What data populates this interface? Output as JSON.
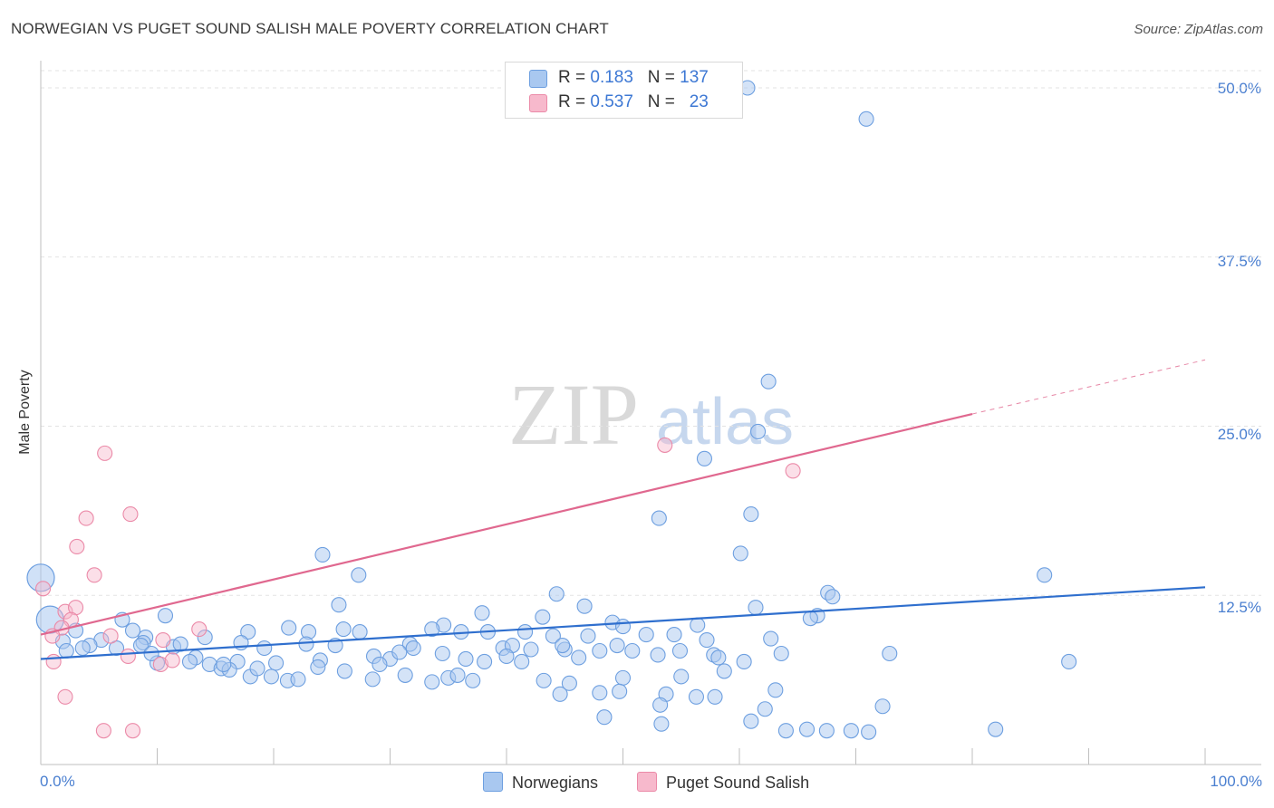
{
  "title": "NORWEGIAN VS PUGET SOUND SALISH MALE POVERTY CORRELATION CHART",
  "source": "Source: ZipAtlas.com",
  "watermark": {
    "zip": "ZIP",
    "atlas": "atlas"
  },
  "legend": {
    "rows": [
      {
        "r_label": "R =",
        "r_value": "0.183",
        "n_label": "N =",
        "n_value": "137"
      },
      {
        "r_label": "R =",
        "r_value": "0.537",
        "n_label": "N =",
        "n_value": "23"
      }
    ]
  },
  "bottom_legend": {
    "series1": "Norwegians",
    "series2": "Puget Sound Salish"
  },
  "colors": {
    "blue_fill": "#a9c8f0",
    "blue_stroke": "#6d9fe0",
    "blue_line": "#2f6fce",
    "pink_fill": "#f7b9cc",
    "pink_stroke": "#eb8aa8",
    "pink_line": "#e0688f",
    "tick_text": "#4a7fd0",
    "grid": "#e3e3e3"
  },
  "chart_data": {
    "type": "scatter",
    "title": "NORWEGIAN VS PUGET SOUND SALISH MALE POVERTY CORRELATION CHART",
    "xlabel": "",
    "ylabel": "Male Poverty",
    "xlim": [
      0,
      100
    ],
    "ylim": [
      0,
      50
    ],
    "x_tick_labels": [
      "0.0%",
      "100.0%"
    ],
    "y_ticks": [
      12.5,
      25.0,
      37.5,
      50.0
    ],
    "y_tick_labels": [
      "12.5%",
      "25.0%",
      "37.5%",
      "50.0%"
    ],
    "grid": true,
    "series": [
      {
        "name": "Norwegians",
        "R": 0.183,
        "N": 137,
        "trend": {
          "x0": 0,
          "y0": 7.8,
          "x1": 100,
          "y1": 13.1
        },
        "points": [
          [
            60.7,
            50.0
          ],
          [
            70.9,
            47.7
          ],
          [
            62.5,
            28.3
          ],
          [
            61.6,
            24.6
          ],
          [
            57.0,
            22.6
          ],
          [
            53.1,
            18.2
          ],
          [
            61.0,
            18.5
          ],
          [
            60.1,
            15.6
          ],
          [
            24.2,
            15.5
          ],
          [
            27.3,
            14.0
          ],
          [
            86.2,
            14.0
          ],
          [
            44.3,
            12.6
          ],
          [
            67.6,
            12.7
          ],
          [
            68.0,
            12.4
          ],
          [
            25.6,
            11.8
          ],
          [
            46.7,
            11.7
          ],
          [
            61.4,
            11.6
          ],
          [
            66.7,
            11.0
          ],
          [
            66.1,
            10.8
          ],
          [
            37.9,
            11.2
          ],
          [
            43.1,
            10.9
          ],
          [
            49.1,
            10.5
          ],
          [
            34.6,
            10.3
          ],
          [
            21.3,
            10.1
          ],
          [
            26.0,
            10.0
          ],
          [
            50.0,
            10.2
          ],
          [
            56.4,
            10.3
          ],
          [
            10.7,
            11.0
          ],
          [
            33.6,
            10.0
          ],
          [
            3.0,
            9.9
          ],
          [
            7.0,
            10.7
          ],
          [
            7.9,
            9.9
          ],
          [
            9.0,
            9.4
          ],
          [
            17.8,
            9.8
          ],
          [
            23.0,
            9.8
          ],
          [
            27.4,
            9.8
          ],
          [
            36.1,
            9.8
          ],
          [
            38.4,
            9.8
          ],
          [
            41.6,
            9.8
          ],
          [
            44.0,
            9.5
          ],
          [
            47.0,
            9.5
          ],
          [
            52.0,
            9.6
          ],
          [
            54.4,
            9.6
          ],
          [
            57.2,
            9.2
          ],
          [
            5.2,
            9.2
          ],
          [
            8.8,
            9.0
          ],
          [
            1.9,
            9.1
          ],
          [
            4.2,
            8.8
          ],
          [
            14.1,
            9.4
          ],
          [
            17.2,
            9.0
          ],
          [
            19.2,
            8.6
          ],
          [
            22.8,
            8.9
          ],
          [
            25.3,
            8.8
          ],
          [
            31.7,
            8.9
          ],
          [
            32.0,
            8.6
          ],
          [
            39.7,
            8.6
          ],
          [
            40.5,
            8.8
          ],
          [
            45.0,
            8.5
          ],
          [
            49.5,
            8.8
          ],
          [
            53.0,
            8.1
          ],
          [
            62.7,
            9.3
          ],
          [
            72.9,
            8.2
          ],
          [
            2.2,
            8.4
          ],
          [
            3.6,
            8.6
          ],
          [
            8.6,
            8.8
          ],
          [
            11.4,
            8.7
          ],
          [
            13.3,
            7.9
          ],
          [
            16.9,
            7.6
          ],
          [
            20.2,
            7.5
          ],
          [
            24.0,
            7.7
          ],
          [
            28.6,
            8.0
          ],
          [
            30.0,
            7.8
          ],
          [
            34.5,
            8.2
          ],
          [
            36.5,
            7.8
          ],
          [
            40.0,
            8.0
          ],
          [
            48.0,
            8.4
          ],
          [
            57.8,
            8.1
          ],
          [
            63.6,
            8.2
          ],
          [
            88.3,
            7.6
          ],
          [
            10.0,
            7.5
          ],
          [
            14.5,
            7.4
          ],
          [
            15.5,
            7.1
          ],
          [
            16.2,
            7.0
          ],
          [
            18.0,
            6.5
          ],
          [
            19.8,
            6.5
          ],
          [
            21.2,
            6.2
          ],
          [
            22.1,
            6.3
          ],
          [
            23.8,
            7.2
          ],
          [
            26.1,
            6.9
          ],
          [
            28.5,
            6.3
          ],
          [
            33.6,
            6.1
          ],
          [
            35.0,
            6.4
          ],
          [
            37.1,
            6.2
          ],
          [
            43.2,
            6.2
          ],
          [
            45.4,
            6.0
          ],
          [
            48.0,
            5.3
          ],
          [
            50.0,
            6.4
          ],
          [
            58.7,
            6.9
          ],
          [
            55.0,
            6.5
          ],
          [
            56.3,
            5.0
          ],
          [
            44.6,
            5.2
          ],
          [
            49.7,
            5.4
          ],
          [
            53.7,
            5.2
          ],
          [
            57.9,
            5.0
          ],
          [
            63.1,
            5.5
          ],
          [
            53.2,
            4.4
          ],
          [
            72.3,
            4.3
          ],
          [
            62.2,
            4.1
          ],
          [
            48.4,
            3.5
          ],
          [
            53.3,
            3.0
          ],
          [
            61.0,
            3.2
          ],
          [
            71.1,
            2.4
          ],
          [
            82.0,
            2.6
          ],
          [
            67.5,
            2.5
          ],
          [
            69.6,
            2.5
          ],
          [
            64.0,
            2.5
          ],
          [
            65.8,
            2.6
          ],
          [
            12.0,
            8.9
          ],
          [
            30.8,
            8.3
          ],
          [
            42.1,
            8.5
          ],
          [
            44.8,
            8.8
          ],
          [
            50.8,
            8.4
          ],
          [
            58.2,
            7.9
          ],
          [
            6.5,
            8.6
          ],
          [
            9.5,
            8.2
          ],
          [
            12.8,
            7.6
          ],
          [
            15.7,
            7.4
          ],
          [
            18.6,
            7.1
          ],
          [
            38.1,
            7.6
          ],
          [
            41.3,
            7.6
          ],
          [
            46.2,
            7.9
          ],
          [
            29.1,
            7.4
          ],
          [
            31.3,
            6.6
          ],
          [
            35.8,
            6.6
          ],
          [
            54.9,
            8.4
          ],
          [
            60.4,
            7.6
          ]
        ],
        "large_points": [
          [
            0.0,
            13.8
          ],
          [
            0.8,
            10.7
          ]
        ]
      },
      {
        "name": "Puget Sound Salish",
        "R": 0.537,
        "N": 23,
        "trend": {
          "x0": 0,
          "y0": 9.6,
          "x1": 80,
          "y1": 25.9
        },
        "trend_dashed_to": {
          "x": 100,
          "y": 29.9
        },
        "points": [
          [
            5.5,
            23.0
          ],
          [
            7.7,
            18.5
          ],
          [
            3.9,
            18.2
          ],
          [
            3.1,
            16.1
          ],
          [
            4.6,
            14.0
          ],
          [
            0.2,
            13.0
          ],
          [
            2.1,
            11.3
          ],
          [
            3.0,
            11.6
          ],
          [
            2.6,
            10.7
          ],
          [
            1.8,
            10.1
          ],
          [
            1.0,
            9.5
          ],
          [
            6.0,
            9.5
          ],
          [
            13.6,
            10.0
          ],
          [
            7.5,
            8.0
          ],
          [
            10.3,
            7.4
          ],
          [
            1.1,
            7.6
          ],
          [
            11.3,
            7.7
          ],
          [
            2.1,
            5.0
          ],
          [
            5.4,
            2.5
          ],
          [
            7.9,
            2.5
          ],
          [
            53.6,
            23.6
          ],
          [
            64.6,
            21.7
          ],
          [
            10.5,
            9.2
          ]
        ]
      }
    ]
  }
}
